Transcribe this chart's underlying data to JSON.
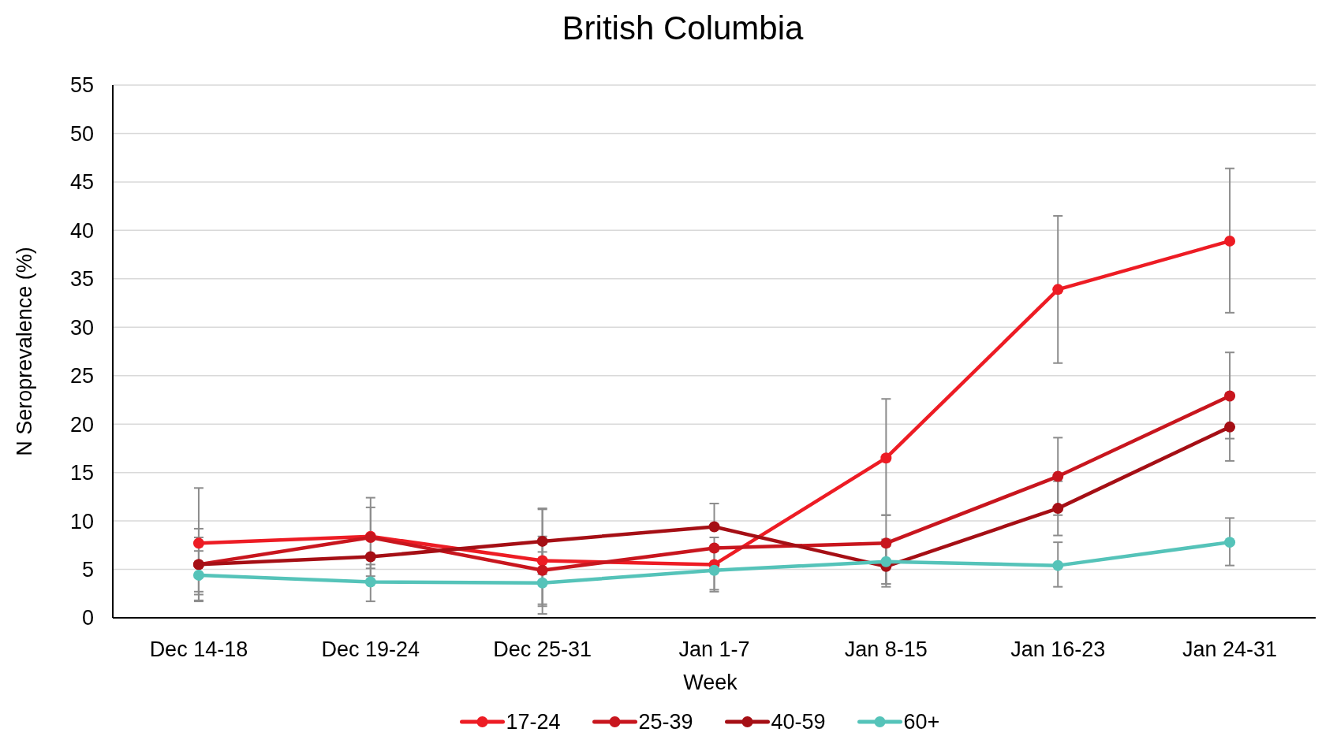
{
  "chart_data": {
    "type": "line",
    "title": "British Columbia",
    "xlabel": "Week",
    "ylabel": "N Seroprevalence (%)",
    "categories": [
      "Dec 14-18",
      "Dec 19-24",
      "Dec 25-31",
      "Jan 1-7",
      "Jan 8-15",
      "Jan 16-23",
      "Jan 24-31"
    ],
    "series": [
      {
        "name": "17-24",
        "color": "#ed1c24",
        "values": [
          7.7,
          8.4,
          5.9,
          5.5,
          16.5,
          33.9,
          38.9
        ],
        "errors": [
          [
            2.4,
            13.4
          ],
          [
            4.3,
            12.4
          ],
          [
            1.2,
            11.2
          ],
          [
            2.7,
            8.3
          ],
          [
            10.6,
            22.6
          ],
          [
            26.3,
            41.5
          ],
          [
            31.5,
            46.4
          ]
        ]
      },
      {
        "name": "25-39",
        "color": "#c8161e",
        "values": [
          5.5,
          8.3,
          4.9,
          7.2,
          7.7,
          14.6,
          22.9
        ],
        "errors": [
          [
            2.7,
            8.3
          ],
          [
            5.1,
            11.4
          ],
          [
            1.4,
            8.4
          ],
          null,
          [
            3.5,
            10.6
          ],
          [
            10.6,
            18.6
          ],
          [
            18.5,
            27.4
          ]
        ]
      },
      {
        "name": "40-59",
        "color": "#a50f15",
        "values": [
          5.5,
          6.3,
          7.9,
          9.4,
          5.3,
          11.3,
          19.7
        ],
        "errors": [
          [
            1.8,
            9.2
          ],
          null,
          [
            4.5,
            11.3
          ],
          [
            9.4,
            11.8
          ],
          [
            3.2,
            7.4
          ],
          [
            8.5,
            14.1
          ],
          [
            16.2,
            23.2
          ]
        ]
      },
      {
        "name": "60+",
        "color": "#55c3b9",
        "values": [
          4.4,
          3.7,
          3.6,
          4.9,
          5.8,
          5.4,
          7.8
        ],
        "errors": [
          [
            1.7,
            6.9
          ],
          [
            1.7,
            5.5
          ],
          [
            0.4,
            6.8
          ],
          [
            2.9,
            6.9
          ],
          [
            3.5,
            8.1
          ],
          [
            3.2,
            7.8
          ],
          [
            5.4,
            10.3
          ]
        ]
      }
    ],
    "ylim": [
      0,
      55
    ],
    "yticks": [
      0,
      5,
      10,
      15,
      20,
      25,
      30,
      35,
      40,
      45,
      50,
      55
    ],
    "grid": "y",
    "legend": "bottom",
    "marker": "circle",
    "line_style": "solid"
  }
}
